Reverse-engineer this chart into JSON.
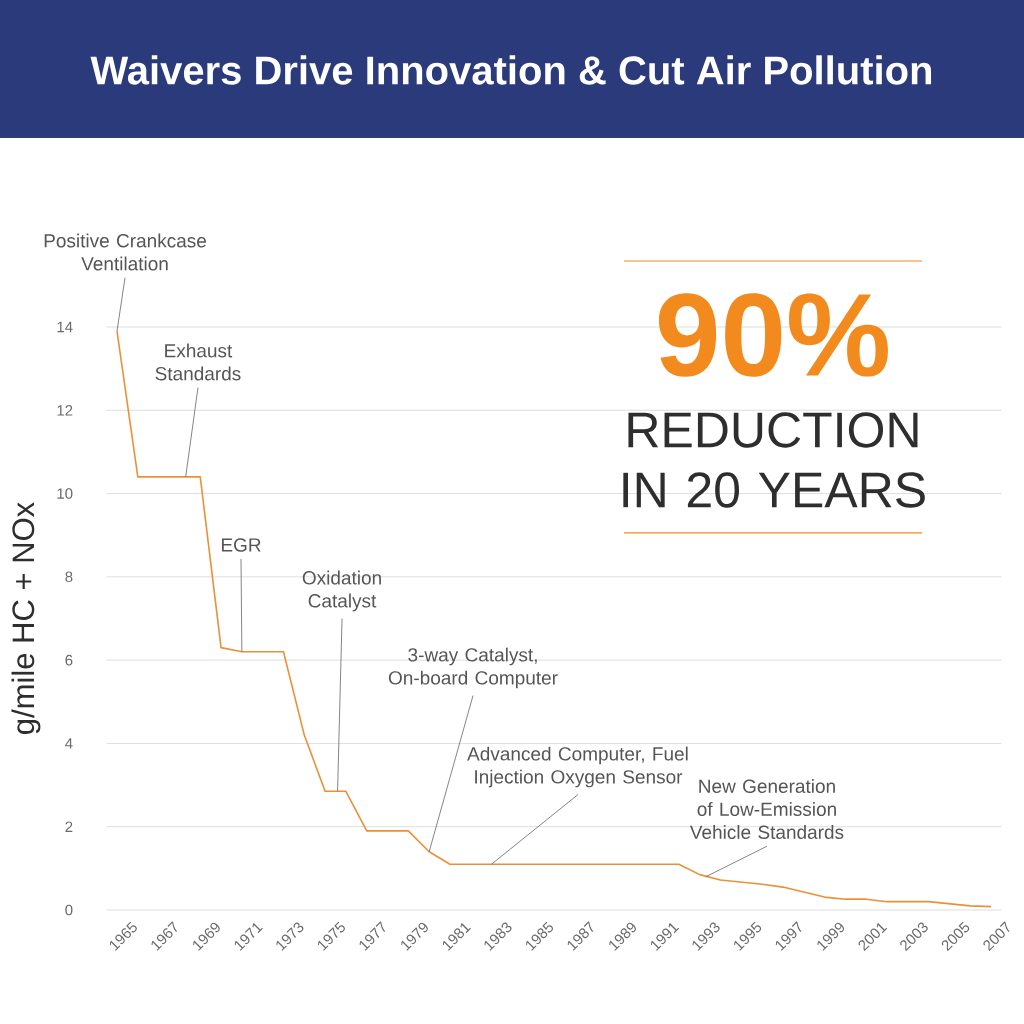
{
  "chart_data": {
    "type": "line",
    "title": "Waivers Drive Innovation & Cut Air Pollution",
    "ylabel": "g/mile HC + NOx",
    "color": "#e8913a",
    "x": [
      1965,
      1966,
      1969,
      1970,
      1971,
      1973,
      1974,
      1975,
      1976,
      1977,
      1979,
      1980,
      1981,
      1992,
      1993,
      1994,
      1995,
      1996,
      1997,
      1999,
      2000,
      2001,
      2002,
      2004,
      2006,
      2007
    ],
    "values": [
      13.9,
      10.4,
      10.4,
      6.3,
      6.2,
      6.2,
      4.2,
      2.85,
      2.85,
      1.9,
      1.9,
      1.4,
      1.1,
      1.1,
      0.85,
      0.72,
      0.67,
      0.62,
      0.55,
      0.31,
      0.26,
      0.26,
      0.2,
      0.2,
      0.1,
      0.08
    ],
    "xlim": [
      1964.5,
      2007.5
    ],
    "ylim": [
      0,
      14
    ],
    "xticks": [
      1965,
      1967,
      1969,
      1971,
      1973,
      1975,
      1977,
      1979,
      1981,
      1983,
      1985,
      1987,
      1989,
      1991,
      1993,
      1995,
      1997,
      1999,
      2001,
      2003,
      2005,
      2007
    ],
    "yticks": [
      0,
      2,
      4,
      6,
      8,
      10,
      12,
      14
    ],
    "grid": "y",
    "annotations": [
      "90%",
      "REDUCTION IN 20 YEARS",
      {
        "text": "Positive Crankcase Ventilation",
        "x": 1965,
        "y": 13.9
      },
      {
        "text": "Exhaust Standards",
        "x": 1968.3,
        "y": 10.4
      },
      {
        "text": "EGR",
        "x": 1971,
        "y": 6.2
      },
      {
        "text": "Oxidation Catalyst",
        "x": 1975.6,
        "y": 2.85
      },
      {
        "text": "3-way Catalyst, On-board Computer",
        "x": 1980,
        "y": 1.4
      },
      {
        "text": "Advanced Computer, Fuel Injection Oxygen Sensor",
        "x": 1983,
        "y": 1.1
      },
      {
        "text": "New Generation of Low-Emission Vehicle Standards",
        "x": 1993.3,
        "y": 0.8
      }
    ]
  }
}
